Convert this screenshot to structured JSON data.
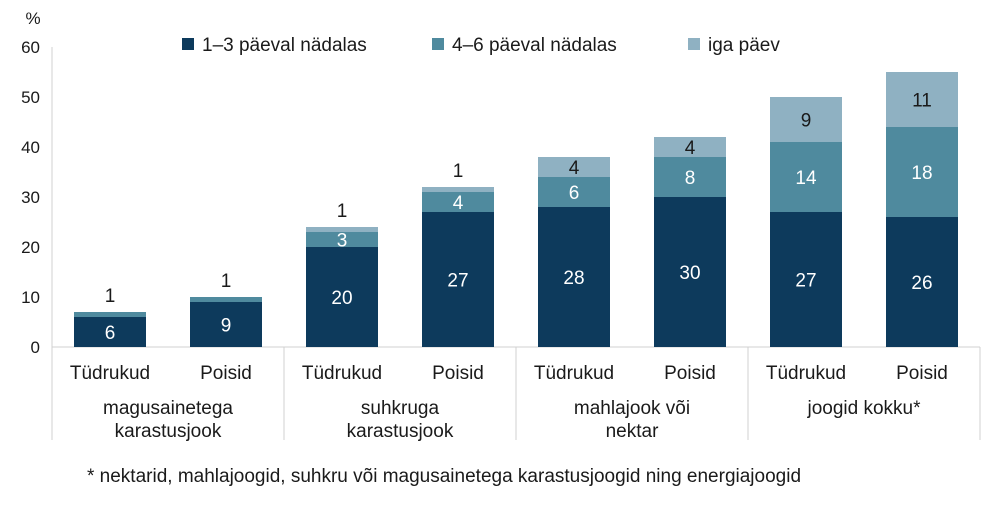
{
  "chart_data": {
    "type": "bar",
    "stacked": true,
    "y_unit": "%",
    "ylim": [
      0,
      60
    ],
    "yticks": [
      0,
      10,
      20,
      30,
      40,
      50,
      60
    ],
    "grid": false,
    "legend_position": "top",
    "series": [
      {
        "name": "1–3 päeval nädalas",
        "color": "#0d3a5c",
        "label_color": "#ffffff",
        "values": [
          6,
          9,
          20,
          27,
          28,
          30,
          27,
          26
        ]
      },
      {
        "name": "4–6 päeval nädalas",
        "color": "#4f8a9e",
        "label_color": "#ffffff",
        "values": [
          1,
          1,
          3,
          4,
          6,
          8,
          14,
          18
        ]
      },
      {
        "name": "iga päev",
        "color": "#8fb1c2",
        "label_color": "#1a1a1a",
        "values": [
          0,
          0,
          1,
          1,
          4,
          4,
          9,
          11
        ]
      }
    ],
    "categories": [
      "Tüdrukud",
      "Poisid",
      "Tüdrukud",
      "Poisid",
      "Tüdrukud",
      "Poisid",
      "Tüdrukud",
      "Poisid"
    ],
    "groups": [
      {
        "label": [
          "magusainetega",
          "karastusjook"
        ],
        "size": 2
      },
      {
        "label": [
          "suhkruga",
          "karastusjook"
        ],
        "size": 2
      },
      {
        "label": [
          "mahlajook või",
          "nektar"
        ],
        "size": 2
      },
      {
        "label": [
          "joogid kokku*"
        ],
        "size": 2
      }
    ],
    "data_labels": [
      [
        "6",
        "9",
        "20",
        "27",
        "28",
        "30",
        "27",
        "26"
      ],
      [
        "",
        "",
        "3",
        "4",
        "6",
        "8",
        "14",
        "18"
      ],
      [
        "",
        "",
        "",
        "",
        "4",
        "4",
        "9",
        "11"
      ]
    ],
    "top_labels": [
      "1",
      "1",
      "1",
      "1",
      "",
      "",
      "",
      ""
    ]
  },
  "footnote": "* nektarid, mahlajoogid, suhkru või magusainetega karastusjoogid ning energiajoogid"
}
